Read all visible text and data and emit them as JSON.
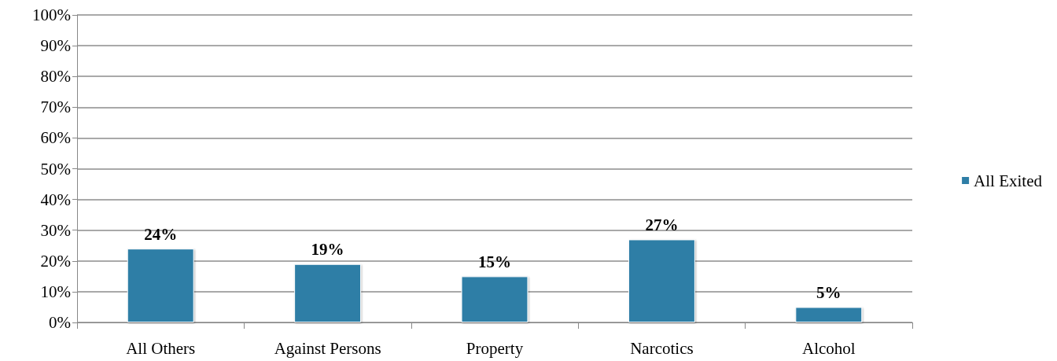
{
  "chart_data": {
    "type": "bar",
    "categories": [
      "All Others",
      "Against Persons",
      "Property",
      "Narcotics",
      "Alcohol"
    ],
    "series": [
      {
        "name": "All Exited",
        "color": "#2e7ea6",
        "values": [
          24,
          19,
          15,
          27,
          5
        ],
        "value_labels": [
          "24%",
          "19%",
          "15%",
          "27%",
          "5%"
        ]
      }
    ],
    "ylim": [
      0,
      100
    ],
    "yticks": [
      {
        "value": 0,
        "label": "0%"
      },
      {
        "value": 10,
        "label": "10%"
      },
      {
        "value": 20,
        "label": "20%"
      },
      {
        "value": 30,
        "label": "30%"
      },
      {
        "value": 40,
        "label": "40%"
      },
      {
        "value": 50,
        "label": "50%"
      },
      {
        "value": 60,
        "label": "60%"
      },
      {
        "value": 70,
        "label": "70%"
      },
      {
        "value": 80,
        "label": "80%"
      },
      {
        "value": 90,
        "label": "90%"
      },
      {
        "value": 100,
        "label": "100%"
      }
    ],
    "grid": "y",
    "legend": "right"
  }
}
